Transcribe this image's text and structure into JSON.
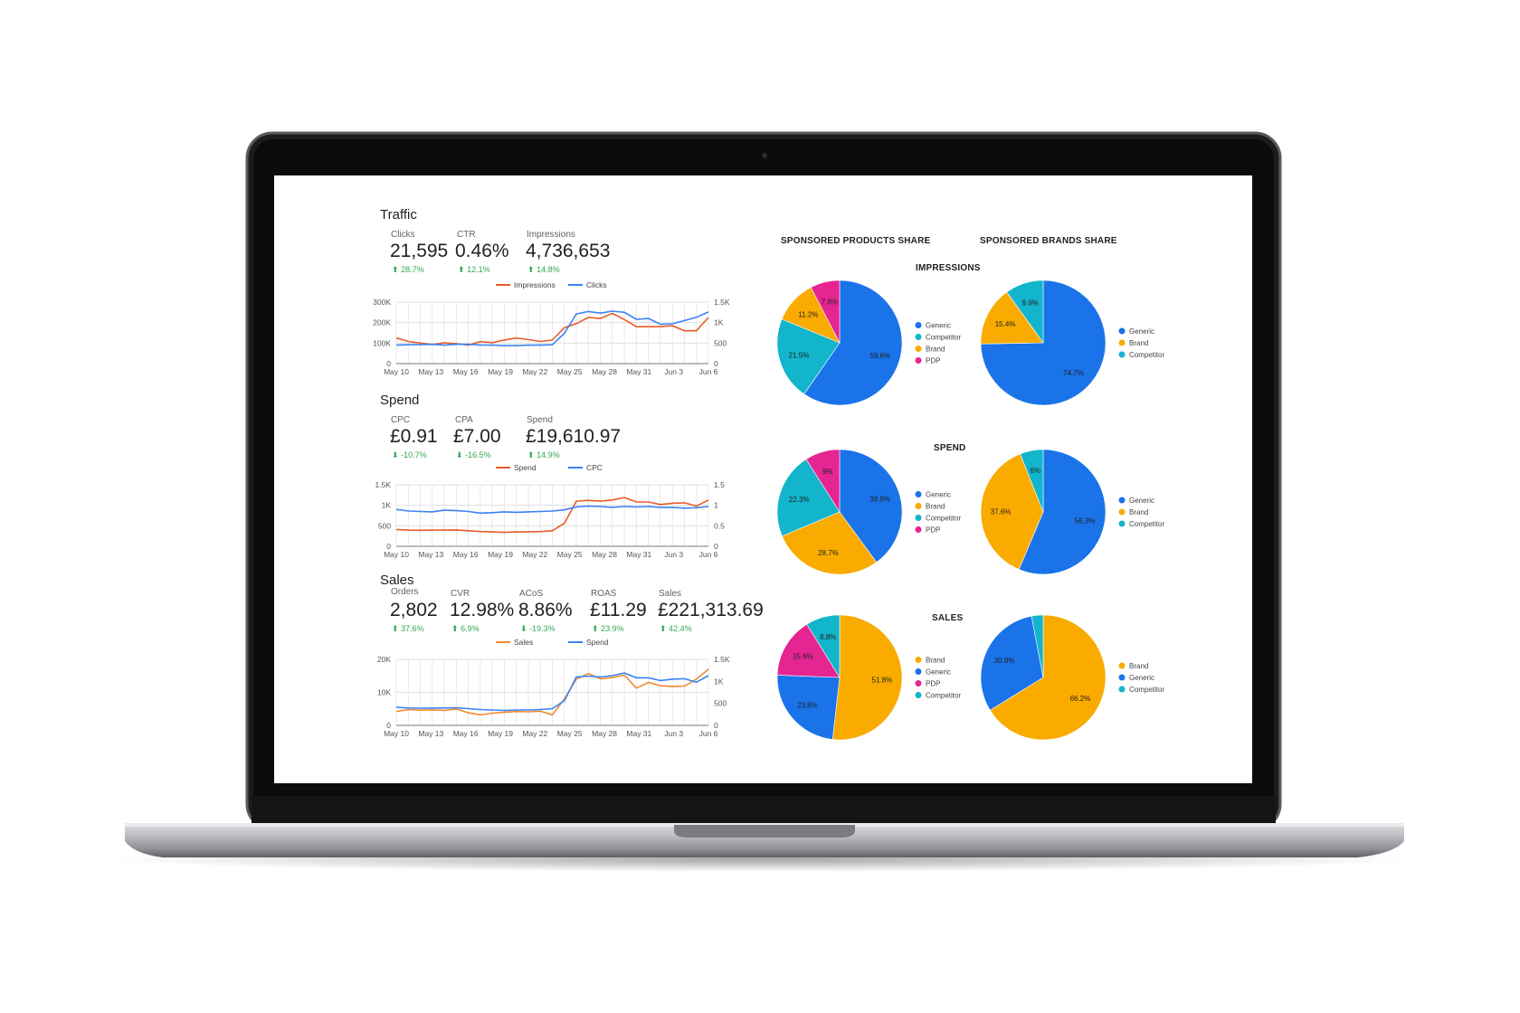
{
  "colors": {
    "impressions_line": "#ea5b2a",
    "clicks_line": "#3b82f6",
    "generic": "#1a73e8",
    "competitor": "#12b5cb",
    "brand": "#f9ab00",
    "pdp": "#e52592",
    "delta_green": "#34a853",
    "grid": "#e0e0e0"
  },
  "traffic": {
    "title": "Traffic",
    "kpis": [
      {
        "label": "Clicks",
        "value": "21,595",
        "delta": "28.7%",
        "dir": "up"
      },
      {
        "label": "CTR",
        "value": "0.46%",
        "delta": "12.1%",
        "dir": "up"
      },
      {
        "label": "Impressions",
        "value": "4,736,653",
        "delta": "14.8%",
        "dir": "up"
      }
    ]
  },
  "spend": {
    "title": "Spend",
    "kpis": [
      {
        "label": "CPC",
        "value": "£0.91",
        "delta": "-10.7%",
        "dir": "down"
      },
      {
        "label": "CPA",
        "value": "£7.00",
        "delta": "-16.5%",
        "dir": "down"
      },
      {
        "label": "Spend",
        "value": "£19,610.97",
        "delta": "14.9%",
        "dir": "up"
      }
    ]
  },
  "sales": {
    "title": "Sales",
    "kpis": [
      {
        "label": "Orders",
        "value": "2,802",
        "delta": "37.6%",
        "dir": "up"
      },
      {
        "label": "CVR",
        "value": "12.98%",
        "delta": "6.9%",
        "dir": "up"
      },
      {
        "label": "ACoS",
        "value": "8.86%",
        "delta": "-19.3%",
        "dir": "down"
      },
      {
        "label": "ROAS",
        "value": "£11.29",
        "delta": "23.9%",
        "dir": "up"
      },
      {
        "label": "Sales",
        "value": "£221,313.69",
        "delta": "42.4%",
        "dir": "up"
      }
    ]
  },
  "pie_headers": {
    "products": "SPONSORED PRODUCTS SHARE",
    "brands": "SPONSORED BRANDS SHARE",
    "impressions": "IMPRESSIONS",
    "spend": "SPEND",
    "sales": "SALES"
  },
  "chart_data": [
    {
      "id": "traffic_chart",
      "type": "line",
      "x_ticks": [
        "May 10",
        "May 13",
        "May 16",
        "May 19",
        "May 22",
        "May 25",
        "May 28",
        "May 31",
        "Jun 3",
        "Jun 6"
      ],
      "left_axis": {
        "ticks": [
          "0",
          "100K",
          "200K",
          "300K"
        ],
        "range": [
          0,
          300000
        ]
      },
      "right_axis": {
        "ticks": [
          "0",
          "500",
          "1K",
          "1.5K"
        ],
        "range": [
          0,
          1500
        ]
      },
      "series": [
        {
          "name": "Impressions",
          "axis": "left",
          "color": "#ea5b2a",
          "values": [
            125000,
            108000,
            100000,
            93000,
            101000,
            97000,
            90000,
            107000,
            102000,
            115000,
            125000,
            117000,
            108000,
            115000,
            175000,
            195000,
            225000,
            220000,
            245000,
            215000,
            180000,
            180000,
            180000,
            185000,
            160000,
            160000,
            225000
          ]
        },
        {
          "name": "Clicks",
          "axis": "right",
          "color": "#3b82f6",
          "values": [
            450,
            460,
            460,
            470,
            450,
            470,
            470,
            455,
            450,
            440,
            440,
            450,
            450,
            460,
            740,
            1210,
            1270,
            1230,
            1280,
            1250,
            1080,
            1100,
            960,
            970,
            1050,
            1130,
            1260
          ]
        }
      ]
    },
    {
      "id": "spend_chart",
      "type": "line",
      "x_ticks": [
        "May 10",
        "May 13",
        "May 16",
        "May 19",
        "May 22",
        "May 25",
        "May 28",
        "May 31",
        "Jun 3",
        "Jun 6"
      ],
      "left_axis": {
        "ticks": [
          "0",
          "500",
          "1K",
          "1.5K"
        ],
        "range": [
          0,
          1500
        ]
      },
      "right_axis": {
        "ticks": [
          "0",
          "0.5",
          "1",
          "1.5"
        ],
        "range": [
          0,
          1.5
        ]
      },
      "series": [
        {
          "name": "Spend",
          "axis": "left",
          "color": "#ea5b2a",
          "values": [
            410,
            395,
            390,
            395,
            395,
            400,
            380,
            360,
            350,
            340,
            350,
            350,
            360,
            380,
            560,
            1100,
            1120,
            1100,
            1130,
            1190,
            1080,
            1080,
            1020,
            1050,
            1060,
            980,
            1130
          ]
        },
        {
          "name": "CPC",
          "axis": "right",
          "color": "#3b82f6",
          "values": [
            0.9,
            0.86,
            0.85,
            0.84,
            0.88,
            0.87,
            0.85,
            0.81,
            0.82,
            0.84,
            0.83,
            0.84,
            0.85,
            0.86,
            0.89,
            0.96,
            0.98,
            0.97,
            0.95,
            0.97,
            0.96,
            0.97,
            0.95,
            0.95,
            0.93,
            0.94,
            0.97
          ]
        }
      ]
    },
    {
      "id": "sales_chart",
      "type": "line",
      "x_ticks": [
        "May 10",
        "May 13",
        "May 16",
        "May 19",
        "May 22",
        "May 25",
        "May 28",
        "May 31",
        "Jun 3",
        "Jun 6"
      ],
      "left_axis": {
        "ticks": [
          "0",
          "10K",
          "20K"
        ],
        "range": [
          0,
          20000
        ]
      },
      "right_axis": {
        "ticks": [
          "0",
          "500",
          "1K",
          "1.5K"
        ],
        "range": [
          0,
          1500
        ]
      },
      "series": [
        {
          "name": "Sales",
          "axis": "left",
          "color": "#f28b30",
          "values": [
            4200,
            4800,
            4600,
            4700,
            4500,
            5000,
            3800,
            3200,
            3700,
            4000,
            4200,
            4100,
            4300,
            3200,
            8000,
            14000,
            15700,
            14100,
            14500,
            15200,
            11300,
            13000,
            12000,
            11800,
            11900,
            14000,
            17000
          ]
        },
        {
          "name": "Spend",
          "axis": "right",
          "color": "#3b82f6",
          "values": [
            410,
            395,
            390,
            395,
            395,
            400,
            380,
            360,
            350,
            340,
            350,
            350,
            360,
            380,
            560,
            1100,
            1120,
            1100,
            1130,
            1190,
            1080,
            1080,
            1020,
            1050,
            1060,
            980,
            1130
          ]
        }
      ]
    },
    {
      "id": "pie_sp_impressions",
      "type": "pie",
      "slices": [
        {
          "name": "Generic",
          "value": 59.6,
          "label": "59.6%",
          "color": "#1a73e8"
        },
        {
          "name": "Competitor",
          "value": 21.5,
          "label": "21.5%",
          "color": "#12b5cb"
        },
        {
          "name": "Brand",
          "value": 11.2,
          "label": "11.2%",
          "color": "#f9ab00"
        },
        {
          "name": "PDP",
          "value": 7.6,
          "label": "7.6%",
          "color": "#e52592"
        }
      ],
      "legend": [
        "Generic",
        "Competitor",
        "Brand",
        "PDP"
      ]
    },
    {
      "id": "pie_sb_impressions",
      "type": "pie",
      "slices": [
        {
          "name": "Generic",
          "value": 74.7,
          "label": "74.7%",
          "color": "#1a73e8"
        },
        {
          "name": "Brand",
          "value": 15.4,
          "label": "15.4%",
          "color": "#f9ab00"
        },
        {
          "name": "Competitor",
          "value": 9.9,
          "label": "9.9%",
          "color": "#12b5cb"
        }
      ],
      "legend": [
        "Generic",
        "Brand",
        "Competitor"
      ]
    },
    {
      "id": "pie_sp_spend",
      "type": "pie",
      "slices": [
        {
          "name": "Generic",
          "value": 39.9,
          "label": "39.9%",
          "color": "#1a73e8"
        },
        {
          "name": "Brand",
          "value": 28.7,
          "label": "28.7%",
          "color": "#f9ab00"
        },
        {
          "name": "Competitor",
          "value": 22.3,
          "label": "22.3%",
          "color": "#12b5cb"
        },
        {
          "name": "PDP",
          "value": 9,
          "label": "9%",
          "color": "#e52592"
        }
      ],
      "legend": [
        "Generic",
        "Brand",
        "Competitor",
        "PDP"
      ]
    },
    {
      "id": "pie_sb_spend",
      "type": "pie",
      "slices": [
        {
          "name": "Generic",
          "value": 56.3,
          "label": "56.3%",
          "color": "#1a73e8"
        },
        {
          "name": "Brand",
          "value": 37.6,
          "label": "37.6%",
          "color": "#f9ab00"
        },
        {
          "name": "Competitor",
          "value": 6,
          "label": "6%",
          "color": "#12b5cb"
        }
      ],
      "legend": [
        "Generic",
        "Brand",
        "Competitor"
      ]
    },
    {
      "id": "pie_sp_sales",
      "type": "pie",
      "slices": [
        {
          "name": "Brand",
          "value": 51.8,
          "label": "51.8%",
          "color": "#f9ab00"
        },
        {
          "name": "Generic",
          "value": 23.8,
          "label": "23.8%",
          "color": "#1a73e8"
        },
        {
          "name": "PDP",
          "value": 15.6,
          "label": "15.6%",
          "color": "#e52592"
        },
        {
          "name": "Competitor",
          "value": 8.8,
          "label": "8.8%",
          "color": "#12b5cb"
        }
      ],
      "legend": [
        "Brand",
        "Generic",
        "PDP",
        "Competitor"
      ]
    },
    {
      "id": "pie_sb_sales",
      "type": "pie",
      "slices": [
        {
          "name": "Brand",
          "value": 66.2,
          "label": "66.2%",
          "color": "#f9ab00"
        },
        {
          "name": "Generic",
          "value": 30.8,
          "label": "30.8%",
          "color": "#1a73e8"
        },
        {
          "name": "Competitor",
          "value": 3,
          "label": "",
          "color": "#12b5cb"
        }
      ],
      "legend": [
        "Brand",
        "Generic",
        "Competitor"
      ]
    }
  ]
}
